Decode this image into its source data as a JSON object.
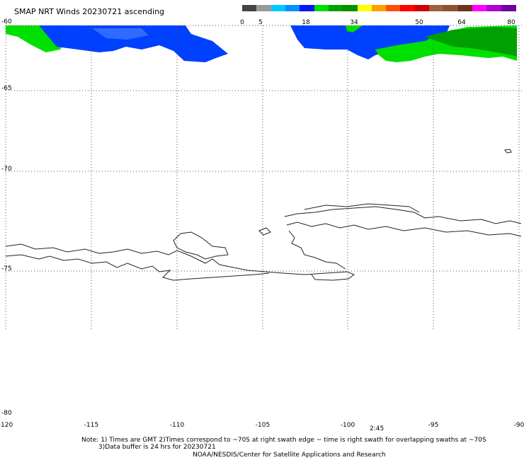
{
  "title": "SMAP NRT Winds 20230721 ascending",
  "colorbar": {
    "ticks": [
      "0",
      "5",
      "18",
      "34",
      "50",
      "64",
      "80"
    ],
    "colors": [
      "#444444",
      "#9a9a9a",
      "#00c8ff",
      "#0090ff",
      "#0018ff",
      "#00dd00",
      "#00a000",
      "#009000",
      "#ffff00",
      "#ffa000",
      "#ff5000",
      "#ff0000",
      "#d00000",
      "#a06040",
      "#905030",
      "#703020",
      "#ff00ff",
      "#b000d0",
      "#7000a0"
    ]
  },
  "map": {
    "lat_labels": [
      "-60",
      "-65",
      "-70",
      "-75",
      "-80"
    ],
    "lon_labels": [
      "-120",
      "-115",
      "-110",
      "-105",
      "-100",
      "-95",
      "-90"
    ],
    "swath_time": "2:45",
    "swath_colors": {
      "blue": "#0040ff",
      "green": "#00e000",
      "dark_green": "#00a000",
      "dot": "#000000"
    }
  },
  "footer": {
    "note_line1": "Note: 1) Times are GMT 2)Times correspond to ~70S at right swath edge ~ time is right swath for overlapping swaths at ~70S",
    "note_line2": "3)Data buffer is 24 hrs for 20230721",
    "credit": "NOAA/NESDIS/Center for Satellite Applications and Research"
  }
}
